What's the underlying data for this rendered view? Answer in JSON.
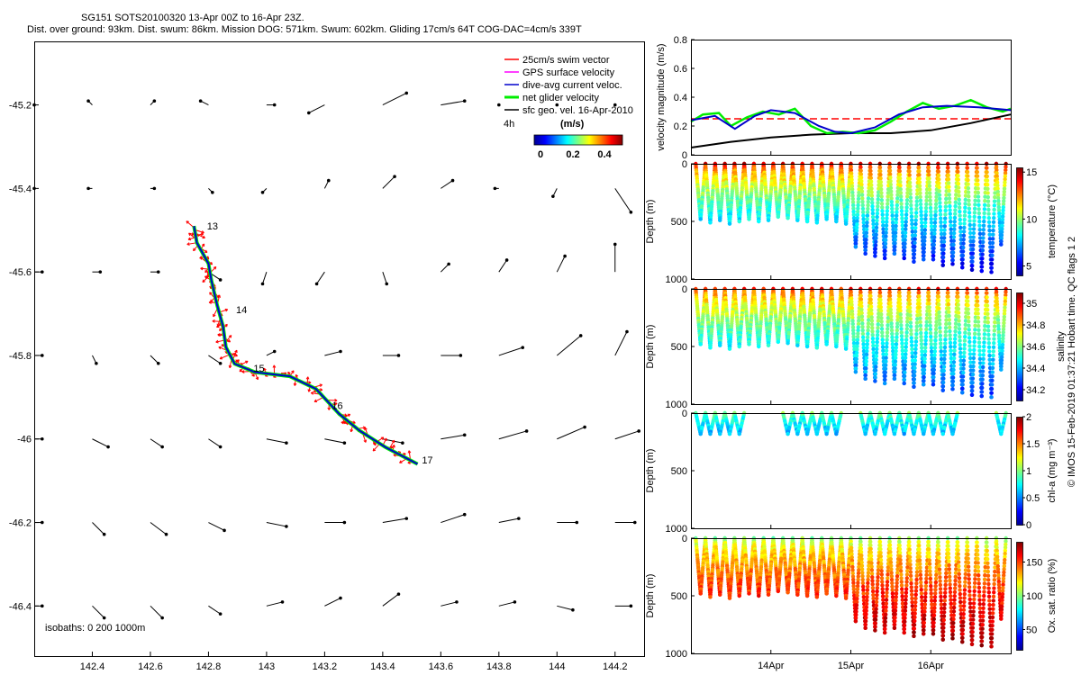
{
  "header": {
    "line1": "SG151 SOTS20100320 13-Apr 00Z to 16-Apr 23Z.",
    "line2": "Dist. over ground: 93km. Dist. swum: 86km. Mission DOG: 571km. Swum: 602km. Gliding 17cm/s 64T COG-DAC=4cm/s 339T"
  },
  "credit": "© IMOS 15-Feb-2019 01:37:21 Hobart time. QC flags 1  2",
  "colors": {
    "swim_vector": "#ff0000",
    "gps_surface": "#ff00ff",
    "dive_avg_current": "#0000cc",
    "net_glider": "#00ee00",
    "sfc_geo": "#000000",
    "reference_line": "#ff0000"
  },
  "chart_data": [
    {
      "id": "map",
      "type": "scatter",
      "xlim": [
        142.2,
        144.3
      ],
      "ylim": [
        -46.52,
        -45.05
      ],
      "xticks": [
        142.4,
        142.6,
        142.8,
        143,
        143.2,
        143.4,
        143.6,
        143.8,
        144,
        144.2
      ],
      "yticks": [
        -45.2,
        -45.4,
        -45.6,
        -45.8,
        -46,
        -46.2,
        -46.4
      ],
      "xtick_labels": [
        "142.4",
        "142.6",
        "142.8",
        "143",
        "143.2",
        "143.4",
        "143.6",
        "143.8",
        "144",
        "144.2"
      ],
      "ytick_labels": [
        "-45.2",
        "-45.4",
        "-45.6",
        "-45.8",
        "-46",
        "-46.2",
        "-46.4"
      ],
      "legend": {
        "entries": [
          "25cm/s swim vector",
          "GPS surface velocity",
          "dive-avg current veloc.",
          "net glider velocity",
          "sfc geo. vel. 16-Apr-2010"
        ],
        "interval": "4h",
        "colorbar_unit": "(m/s)",
        "colorbar_ticks": [
          "0",
          "0.2",
          "0.4"
        ]
      },
      "isobaths_label": "isobaths: 0   200  1000m",
      "track": [
        [
          142.75,
          -45.49
        ],
        [
          142.76,
          -45.53
        ],
        [
          142.8,
          -45.58
        ],
        [
          142.81,
          -45.62
        ],
        [
          142.83,
          -45.68
        ],
        [
          142.85,
          -45.73
        ],
        [
          142.86,
          -45.78
        ],
        [
          142.89,
          -45.82
        ],
        [
          142.96,
          -45.84
        ],
        [
          143.08,
          -45.85
        ],
        [
          143.17,
          -45.88
        ],
        [
          143.25,
          -45.94
        ],
        [
          143.32,
          -45.98
        ],
        [
          143.41,
          -46.02
        ],
        [
          143.52,
          -46.06
        ]
      ],
      "day_labels": [
        {
          "label": "13",
          "lon": 142.77,
          "lat": -45.49
        },
        {
          "label": "14",
          "lon": 142.87,
          "lat": -45.69
        },
        {
          "label": "15",
          "lon": 142.93,
          "lat": -45.83
        },
        {
          "label": "16",
          "lon": 143.2,
          "lat": -45.92
        },
        {
          "label": "17",
          "lon": 143.51,
          "lat": -46.05
        }
      ],
      "geo_vectors": {
        "lons": [
          142.2,
          142.4,
          142.6,
          142.8,
          143.0,
          143.2,
          143.4,
          143.6,
          143.8,
          144.0,
          144.2
        ],
        "lats": [
          -45.2,
          -45.4,
          -45.6,
          -45.8,
          -46.0,
          -46.2,
          -46.4
        ],
        "u_rows": [
          [
            0,
            -0.01,
            0.01,
            -0.02,
            0.02,
            -0.04,
            0.06,
            0.06,
            0,
            0,
            0
          ],
          [
            0,
            -0.01,
            0.01,
            0.01,
            -0.01,
            0.01,
            0.03,
            0.03,
            -0.01,
            -0.01,
            0.04
          ],
          [
            0.02,
            0.02,
            0.02,
            0.03,
            -0.01,
            -0.02,
            0.01,
            0.02,
            0.02,
            0.02,
            0.0
          ],
          [
            0.02,
            0.01,
            0.02,
            0.03,
            0.02,
            0.04,
            0.04,
            0.05,
            0.06,
            0.06,
            0.03
          ],
          [
            0.02,
            0.04,
            0.03,
            0.03,
            0.05,
            0.05,
            0.05,
            0.06,
            0.07,
            0.07,
            0.06
          ],
          [
            0.02,
            0.03,
            0.04,
            0.04,
            0.05,
            0.05,
            0.06,
            0.06,
            0.05,
            0.05,
            0.05
          ],
          [
            0.02,
            0.03,
            0.03,
            0.03,
            0.04,
            0.04,
            0.04,
            0.04,
            0.04,
            0.04,
            0.04
          ]
        ],
        "v_rows": [
          [
            0,
            0.01,
            0.01,
            0.01,
            0,
            -0.02,
            0.03,
            0.01,
            0,
            0,
            0
          ],
          [
            0,
            0,
            0,
            -0.01,
            -0.01,
            0.02,
            0.03,
            0.02,
            0.0,
            -0.02,
            -0.06
          ],
          [
            0,
            0,
            0,
            -0.02,
            -0.03,
            -0.03,
            -0.03,
            0.02,
            0.03,
            0.04,
            0.07
          ],
          [
            0,
            -0.02,
            -0.02,
            -0.02,
            0.01,
            0.01,
            0.0,
            0.0,
            0.02,
            0.05,
            0.06
          ],
          [
            0,
            -0.02,
            -0.02,
            -0.02,
            -0.01,
            -0.01,
            -0.01,
            0.01,
            0.02,
            0.03,
            0.02
          ],
          [
            0,
            -0.03,
            -0.03,
            -0.02,
            -0.01,
            0.0,
            0.01,
            0.02,
            0.01,
            0.0,
            0.0
          ],
          [
            0,
            -0.03,
            -0.03,
            -0.02,
            0.01,
            0.02,
            0.03,
            0.01,
            0.01,
            -0.01,
            0.0
          ]
        ]
      }
    },
    {
      "id": "velocity",
      "type": "line",
      "ylabel": "velocity magnitude (m/s)",
      "xlim": [
        13.0,
        17.0
      ],
      "ylim": [
        0,
        0.8
      ],
      "yticks": [
        0,
        0.2,
        0.4,
        0.6,
        0.8
      ],
      "ytick_labels": [
        "0",
        "0.2",
        "0.4",
        "0.6",
        "0.8"
      ],
      "reference_value": 0.25,
      "series": [
        {
          "key": "dive_avg",
          "x": [
            13.0,
            13.3,
            13.55,
            13.8,
            14.0,
            14.3,
            14.6,
            14.8,
            15.0,
            15.3,
            15.6,
            15.9,
            16.2,
            16.6,
            17.0
          ],
          "y": [
            0.24,
            0.27,
            0.18,
            0.27,
            0.31,
            0.29,
            0.2,
            0.16,
            0.15,
            0.19,
            0.28,
            0.33,
            0.34,
            0.33,
            0.31
          ]
        },
        {
          "key": "sfc_geo",
          "x": [
            13.0,
            13.5,
            14.0,
            14.5,
            15.0,
            15.5,
            16.0,
            16.5,
            17.0
          ],
          "y": [
            0.05,
            0.09,
            0.12,
            0.14,
            0.15,
            0.15,
            0.17,
            0.22,
            0.28
          ]
        },
        {
          "key": "net_glider",
          "x": [
            13.0,
            13.15,
            13.35,
            13.5,
            13.7,
            13.9,
            14.1,
            14.3,
            14.5,
            14.7,
            14.9,
            15.1,
            15.3,
            15.5,
            15.7,
            15.9,
            16.1,
            16.3,
            16.5,
            16.7,
            16.9,
            17.0
          ],
          "y": [
            0.23,
            0.28,
            0.29,
            0.2,
            0.26,
            0.3,
            0.28,
            0.32,
            0.2,
            0.15,
            0.16,
            0.15,
            0.17,
            0.23,
            0.3,
            0.36,
            0.32,
            0.34,
            0.38,
            0.33,
            0.3,
            0.32
          ]
        }
      ]
    },
    {
      "id": "temperature",
      "type": "scatter",
      "ylabel": "Depth (m)",
      "cbar_label": "temperature (°C)",
      "ylim": [
        1000,
        0
      ],
      "yticks": [
        0,
        500,
        1000
      ],
      "ytick_labels": [
        "0",
        "500",
        "1000"
      ],
      "cbar_range": [
        4,
        15.5
      ],
      "cbar_ticks": [
        5,
        10,
        15
      ],
      "cbar_tick_labels": [
        "5",
        "10",
        "15"
      ],
      "surface_value": 14.5,
      "deep_value": 5.5
    },
    {
      "id": "salinity",
      "type": "scatter",
      "ylabel": "Depth (m)",
      "cbar_label": "salinity",
      "ylim": [
        1000,
        0
      ],
      "yticks": [
        0,
        500,
        1000
      ],
      "ytick_labels": [
        "0",
        "500",
        "1000"
      ],
      "cbar_range": [
        34.1,
        35.1
      ],
      "cbar_ticks": [
        34.2,
        34.4,
        34.6,
        34.8,
        35.0
      ],
      "cbar_tick_labels": [
        "34.2",
        "34.4",
        "34.6",
        "34.8",
        "35"
      ],
      "surface_value": 34.95,
      "deep_value": 34.3
    },
    {
      "id": "chla",
      "type": "scatter",
      "ylabel": "Depth (m)",
      "cbar_label": "chl-a (mg m⁻³)",
      "ylim": [
        1000,
        0
      ],
      "yticks": [
        0,
        500,
        1000
      ],
      "ytick_labels": [
        "0",
        "500",
        "1000"
      ],
      "cbar_range": [
        0,
        2
      ],
      "cbar_ticks": [
        0,
        0.5,
        1,
        1.5,
        2
      ],
      "cbar_tick_labels": [
        "0",
        "0.5",
        "1",
        "1.5",
        "2"
      ],
      "surface_value": 1.0,
      "deep_value": 0.1
    },
    {
      "id": "oxygen",
      "type": "scatter",
      "ylabel": "Depth (m)",
      "cbar_label": "Ox. sat. ratio (%)",
      "ylim": [
        1000,
        0
      ],
      "yticks": [
        0,
        500,
        1000
      ],
      "ytick_labels": [
        "0",
        "500",
        "1000"
      ],
      "cbar_range": [
        20,
        180
      ],
      "cbar_ticks": [
        50,
        100,
        150
      ],
      "cbar_tick_labels": [
        "50",
        "100",
        "150"
      ],
      "surface_value": 100,
      "deep_value": 175
    }
  ],
  "time_axis": {
    "xlim": [
      13.0,
      17.0
    ],
    "ticks": [
      14.0,
      15.0,
      16.0
    ],
    "tick_labels": [
      "14Apr",
      "15Apr",
      "16Apr"
    ],
    "dives": {
      "n": 32,
      "start": 13.06,
      "end": 16.94,
      "deep_depths": [
        480,
        510,
        490,
        520,
        500,
        480,
        500,
        490,
        460,
        470,
        490,
        500,
        510,
        480,
        500,
        520,
        720,
        780,
        800,
        820,
        780,
        820,
        850,
        830,
        830,
        880,
        870,
        900,
        920,
        930,
        940,
        700
      ],
      "chla_dives": [
        0,
        1,
        2,
        3,
        4,
        9,
        10,
        11,
        12,
        13,
        14,
        17,
        18,
        19,
        20,
        21,
        22,
        23,
        24,
        25,
        26,
        31
      ]
    }
  }
}
